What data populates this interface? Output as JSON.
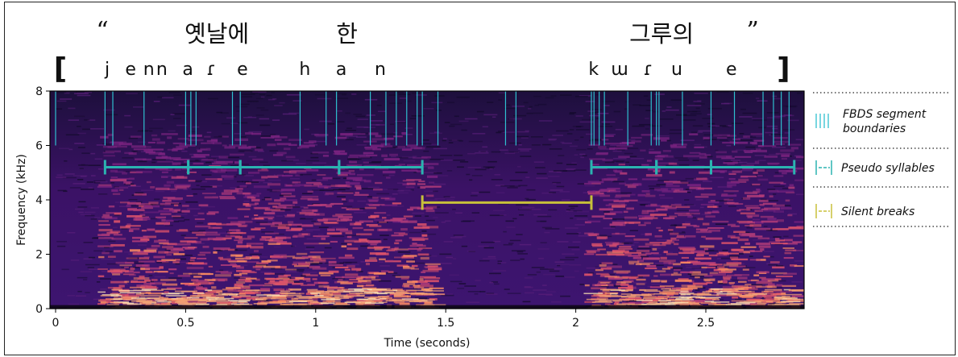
{
  "chart_data": {
    "type": "heatmap",
    "subtype": "spectrogram",
    "xlabel": "Time (seconds)",
    "ylabel": "Frequency (kHz)",
    "xlim": [
      0,
      2.85
    ],
    "ylim": [
      0,
      8
    ],
    "xticks": [
      0,
      0.5,
      1,
      1.5,
      2,
      2.5
    ],
    "xtick_labels": [
      "0",
      "0.5",
      "1",
      "1.5",
      "2",
      "2.5"
    ],
    "yticks": [
      0,
      2,
      4,
      6,
      8
    ],
    "ytick_labels": [
      "0",
      "2",
      "4",
      "6",
      "8"
    ],
    "colormap": "magma",
    "korean_words": [
      {
        "text": "“",
        "x": 0.18
      },
      {
        "text": "옛날에",
        "x": 0.62
      },
      {
        "text": "한",
        "x": 1.12
      },
      {
        "text": "그루의",
        "x": 2.33
      },
      {
        "text": "”",
        "x": 2.68
      }
    ],
    "ipa": [
      {
        "text": "[",
        "x": 0.02,
        "bracket": true
      },
      {
        "text": "j",
        "x": 0.2
      },
      {
        "text": "e",
        "x": 0.29
      },
      {
        "text": "n",
        "x": 0.36
      },
      {
        "text": "n",
        "x": 0.41
      },
      {
        "text": "a",
        "x": 0.51
      },
      {
        "text": "ɾ",
        "x": 0.6
      },
      {
        "text": "e",
        "x": 0.72
      },
      {
        "text": "h",
        "x": 0.96
      },
      {
        "text": "a",
        "x": 1.1
      },
      {
        "text": "n",
        "x": 1.25
      },
      {
        "text": "k",
        "x": 2.07
      },
      {
        "text": "ɯ",
        "x": 2.17
      },
      {
        "text": "ɾ",
        "x": 2.28
      },
      {
        "text": "u",
        "x": 2.39
      },
      {
        "text": "e",
        "x": 2.6
      },
      {
        "text": "]",
        "x": 2.8,
        "bracket": true
      }
    ],
    "fbds_boundaries": [
      0.0,
      0.19,
      0.22,
      0.34,
      0.5,
      0.52,
      0.54,
      0.68,
      0.71,
      0.94,
      1.04,
      1.08,
      1.21,
      1.27,
      1.31,
      1.35,
      1.39,
      1.41,
      1.47,
      1.73,
      1.77,
      2.06,
      2.07,
      2.09,
      2.11,
      2.2,
      2.29,
      2.31,
      2.32,
      2.41,
      2.52,
      2.61,
      2.72,
      2.76,
      2.79,
      2.82
    ],
    "pseudo_syllables": {
      "y": 5.2,
      "segments": [
        [
          0.19,
          0.51
        ],
        [
          0.51,
          0.71
        ],
        [
          0.71,
          1.09
        ],
        [
          1.09,
          1.41
        ],
        [
          2.06,
          2.31
        ],
        [
          2.31,
          2.52
        ],
        [
          2.52,
          2.84
        ]
      ]
    },
    "silent_breaks": {
      "y": 3.9,
      "segments": [
        [
          1.41,
          2.06
        ]
      ]
    },
    "colors": {
      "fbds": "#2fc0d0",
      "pseudo": "#2bb3b1",
      "silent": "#c8c03a"
    },
    "legend": {
      "placement": "right",
      "entries": [
        {
          "label": "FBDS segment boundaries",
          "line1": "FBDS segment",
          "line2": "boundaries"
        },
        {
          "label": "Pseudo syllables"
        },
        {
          "label": "Silent breaks"
        }
      ]
    }
  }
}
